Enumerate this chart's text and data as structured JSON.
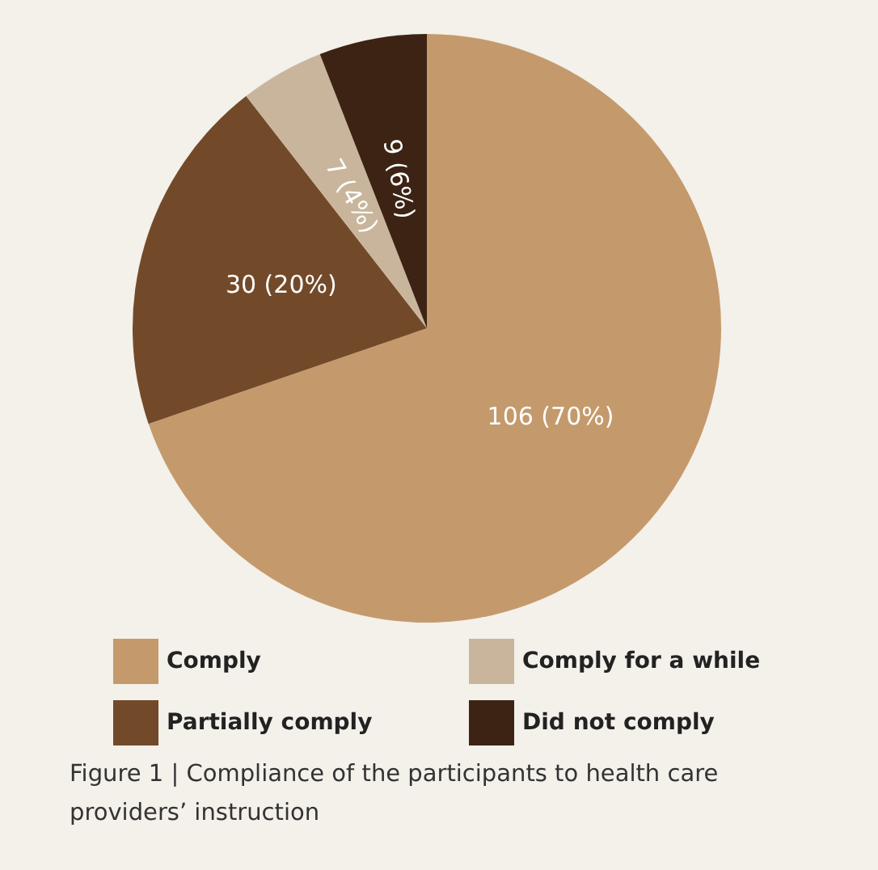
{
  "chart_data": {
    "type": "pie",
    "title": "Figure 1 | Compliance of the participants to health care providers’ instruction",
    "categories": [
      "Comply",
      "Partially comply",
      "Comply for a while",
      "Did not comply"
    ],
    "values": [
      106,
      30,
      7,
      9
    ],
    "colors": [
      "#c49a6c",
      "#734a29",
      "#c8b59c",
      "#3d2314"
    ],
    "value_labels": [
      "106 (70%)",
      "30 (20%)",
      "7 (4%)",
      "9 (6%)"
    ],
    "legend": "bottom"
  }
}
